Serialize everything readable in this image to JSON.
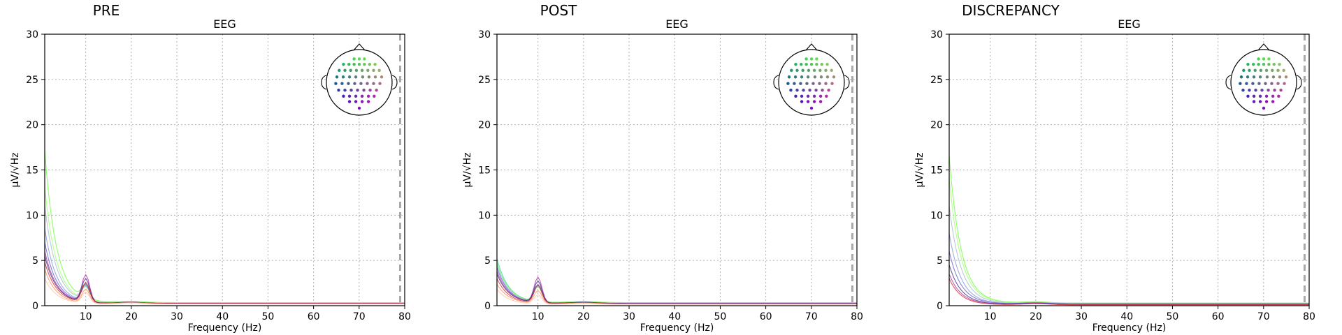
{
  "chart_data": [
    {
      "type": "line",
      "title": "PRE",
      "axes_title": "EEG",
      "xlabel": "Frequency (Hz)",
      "ylabel": "µV/√Hz",
      "xlim": [
        1,
        80
      ],
      "ylim": [
        0,
        30
      ],
      "xticks": [
        10,
        20,
        30,
        40,
        50,
        60,
        70,
        80
      ],
      "yticks": [
        0,
        5,
        10,
        15,
        20,
        25,
        30
      ],
      "nyquist_line_hz": 79,
      "grid": true,
      "sensor_inset": "top-right",
      "series_summary": [
        {
          "color": "#66ff33",
          "peak_at_1hz": 17.0,
          "alpha_peak": 1.5,
          "tail": 0.35
        },
        {
          "color": "#99ff66",
          "peak_at_1hz": 13.0,
          "alpha_peak": 1.4,
          "tail": 0.3
        },
        {
          "color": "#9fb9c9",
          "peak_at_1hz": 11.0,
          "alpha_peak": 1.6,
          "tail": 0.3
        },
        {
          "color": "#7f8fd8",
          "peak_at_1hz": 8.5,
          "alpha_peak": 1.8,
          "tail": 0.25
        },
        {
          "color": "#5a5ad0",
          "peak_at_1hz": 7.0,
          "alpha_peak": 2.0,
          "tail": 0.25
        },
        {
          "color": "#aa22aa",
          "peak_at_1hz": 6.0,
          "alpha_peak": 3.0,
          "tail": 0.25
        },
        {
          "color": "#3b2a7a",
          "peak_at_1hz": 5.5,
          "alpha_peak": 2.6,
          "tail": 0.25
        },
        {
          "color": "#dd2222",
          "peak_at_1hz": 4.8,
          "alpha_peak": 2.2,
          "tail": 0.25
        },
        {
          "color": "#ff8855",
          "peak_at_1hz": 4.0,
          "alpha_peak": 1.5,
          "tail": 0.2
        },
        {
          "color": "#ffc0a0",
          "peak_at_1hz": 3.0,
          "alpha_peak": 1.2,
          "tail": 0.2
        }
      ]
    },
    {
      "type": "line",
      "title": "POST",
      "axes_title": "EEG",
      "xlabel": "Frequency (Hz)",
      "ylabel": "µV/√Hz",
      "xlim": [
        1,
        80
      ],
      "ylim": [
        0,
        30
      ],
      "xticks": [
        10,
        20,
        30,
        40,
        50,
        60,
        70,
        80
      ],
      "yticks": [
        0,
        5,
        10,
        15,
        20,
        25,
        30
      ],
      "nyquist_line_hz": 79,
      "grid": true,
      "sensor_inset": "top-right",
      "series_summary": [
        {
          "color": "#44cccc",
          "peak_at_1hz": 5.2,
          "alpha_peak": 1.8,
          "tail": 0.3
        },
        {
          "color": "#66ff33",
          "peak_at_1hz": 4.8,
          "alpha_peak": 1.6,
          "tail": 0.35
        },
        {
          "color": "#9fb9c9",
          "peak_at_1hz": 4.5,
          "alpha_peak": 1.7,
          "tail": 0.3
        },
        {
          "color": "#5a5ad0",
          "peak_at_1hz": 4.2,
          "alpha_peak": 2.0,
          "tail": 0.25
        },
        {
          "color": "#aa22aa",
          "peak_at_1hz": 3.8,
          "alpha_peak": 2.8,
          "tail": 0.25
        },
        {
          "color": "#3b2a7a",
          "peak_at_1hz": 3.5,
          "alpha_peak": 2.4,
          "tail": 0.25
        },
        {
          "color": "#dd2222",
          "peak_at_1hz": 3.0,
          "alpha_peak": 2.0,
          "tail": 0.2
        },
        {
          "color": "#ff8855",
          "peak_at_1hz": 2.4,
          "alpha_peak": 1.4,
          "tail": 0.2
        },
        {
          "color": "#ffc0a0",
          "peak_at_1hz": 1.8,
          "alpha_peak": 1.0,
          "tail": 0.15
        }
      ]
    },
    {
      "type": "line",
      "title": "DISCREPANCY",
      "axes_title": "EEG",
      "xlabel": "Frequency (Hz)",
      "ylabel": "µV/√Hz",
      "xlim": [
        1,
        80
      ],
      "ylim": [
        0,
        30
      ],
      "xticks": [
        10,
        20,
        30,
        40,
        50,
        60,
        70,
        80
      ],
      "yticks": [
        0,
        5,
        10,
        15,
        20,
        25,
        30
      ],
      "nyquist_line_hz": 79,
      "grid": true,
      "sensor_inset": "top-right",
      "series_summary": [
        {
          "color": "#66ff33",
          "peak_at_1hz": 16.5,
          "alpha_peak": 0.0,
          "tail": 0.3
        },
        {
          "color": "#99ff66",
          "peak_at_1hz": 14.0,
          "alpha_peak": 0.0,
          "tail": 0.3
        },
        {
          "color": "#9fb9c9",
          "peak_at_1hz": 11.0,
          "alpha_peak": 0.0,
          "tail": 0.25
        },
        {
          "color": "#7f8fd8",
          "peak_at_1hz": 8.0,
          "alpha_peak": 0.0,
          "tail": 0.2
        },
        {
          "color": "#5a5ad0",
          "peak_at_1hz": 6.0,
          "alpha_peak": 0.0,
          "tail": 0.2
        },
        {
          "color": "#3b2a7a",
          "peak_at_1hz": 4.5,
          "alpha_peak": 0.0,
          "tail": 0.15
        },
        {
          "color": "#aa22aa",
          "peak_at_1hz": 3.5,
          "alpha_peak": 0.0,
          "tail": 0.15
        },
        {
          "color": "#dd2222",
          "peak_at_1hz": 3.0,
          "alpha_peak": 0.0,
          "tail": 0.1
        }
      ]
    }
  ]
}
